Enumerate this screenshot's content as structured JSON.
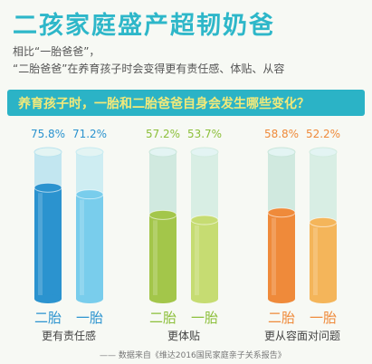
{
  "header": {
    "title": "二孩家庭盛产超韧奶爸",
    "subtitle_line1": "相比“一胎爸爸”，",
    "subtitle_line2": "“二胎爸爸”在养育孩子时会变得更有责任感、体贴、从容"
  },
  "banner": {
    "text": "养育孩子时，一胎和二胎爸爸自身会发生哪些变化？"
  },
  "footer": {
    "source": "—— 数据来自《维达2016国民家庭亲子关系报告》"
  },
  "chart_data": {
    "type": "bar",
    "title": "养育孩子时，一胎和二胎爸爸自身会发生哪些变化？",
    "categories": [
      "更有责任感",
      "更体贴",
      "更从容面对问题"
    ],
    "bar_labels": [
      "二胎",
      "一胎"
    ],
    "ylim": [
      0,
      100
    ],
    "unit": "%",
    "groups": [
      {
        "category": "更有责任感",
        "bars": [
          {
            "label": "二胎",
            "value": 75.8,
            "value_text": "75.8%",
            "color": "#2b93cf",
            "light": "#b9e3ee"
          },
          {
            "label": "一胎",
            "value": 71.2,
            "value_text": "71.2%",
            "color": "#79cdec",
            "light": "#c7ebf1"
          }
        ]
      },
      {
        "category": "更体贴",
        "bars": [
          {
            "label": "二胎",
            "value": 57.2,
            "value_text": "57.2%",
            "color": "#a3c64a",
            "light": "#c9e6da"
          },
          {
            "label": "一胎",
            "value": 53.7,
            "value_text": "53.7%",
            "color": "#c6dc72",
            "light": "#d2ece0"
          }
        ]
      },
      {
        "category": "更从容面对问题",
        "bars": [
          {
            "label": "二胎",
            "value": 58.8,
            "value_text": "58.8%",
            "color": "#ef8a3a",
            "light": "#c9e6da"
          },
          {
            "label": "一胎",
            "value": 52.2,
            "value_text": "52.2%",
            "color": "#f4b55a",
            "light": "#d2ece0"
          }
        ]
      }
    ],
    "colors": {
      "title": "#2eb7c9",
      "banner": "#2bb3c6",
      "banner_text": "#f2e97a",
      "label_blue": "#2b93cf",
      "label_green": "#8cbf3a",
      "label_orange": "#ef8a3a"
    }
  }
}
